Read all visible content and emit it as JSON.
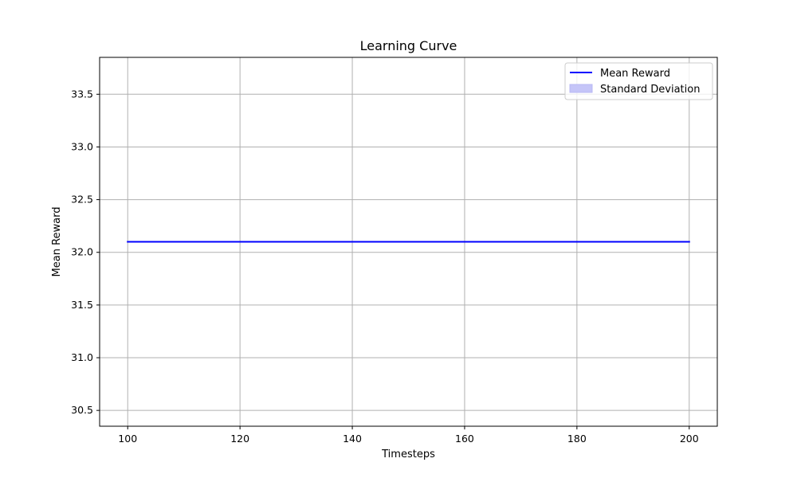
{
  "chart_data": {
    "type": "line",
    "title": "Learning Curve",
    "xlabel": "Timesteps",
    "ylabel": "Mean Reward",
    "xlim": [
      95,
      205
    ],
    "ylim": [
      30.35,
      33.85
    ],
    "x_ticks": [
      100,
      120,
      140,
      160,
      180,
      200
    ],
    "y_ticks": [
      30.5,
      31.0,
      31.5,
      32.0,
      32.5,
      33.0,
      33.5
    ],
    "x_tick_labels": [
      "100",
      "120",
      "140",
      "160",
      "180",
      "200"
    ],
    "y_tick_labels": [
      "30.5",
      "31.0",
      "31.5",
      "32.0",
      "32.5",
      "33.0",
      "33.5"
    ],
    "grid": true,
    "legend_position": "top-right",
    "series": [
      {
        "name": "Mean Reward",
        "x": [
          100,
          200
        ],
        "values": [
          32.1,
          32.1
        ],
        "color": "#0000ff"
      }
    ],
    "band": {
      "name": "Standard Deviation",
      "x": [
        100,
        200
      ],
      "lower": [
        32.1,
        32.1
      ],
      "upper": [
        32.1,
        32.1
      ],
      "color": "#0000ff",
      "fill_color": "#c5c5f8"
    }
  }
}
